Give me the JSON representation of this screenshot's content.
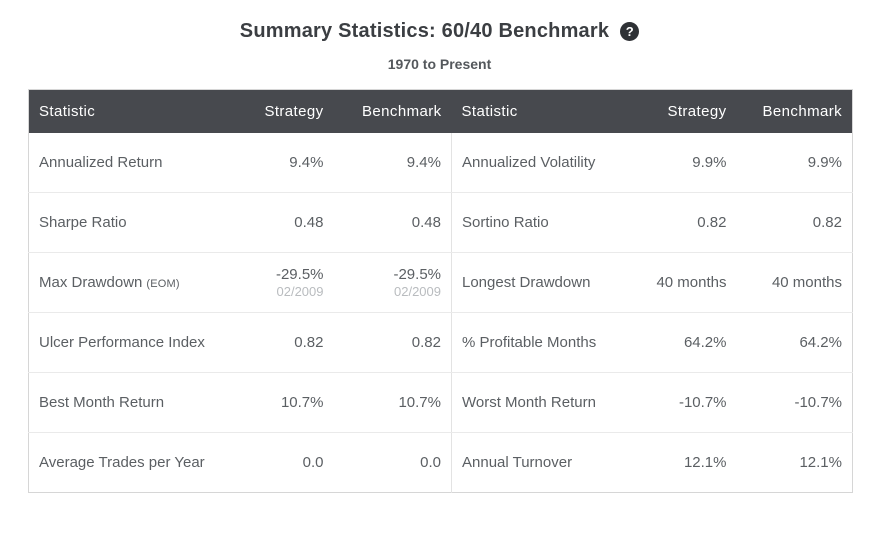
{
  "header": {
    "title": "Summary Statistics: 60/40 Benchmark",
    "help_glyph": "?",
    "help_icon": "question-mark-circle-icon",
    "subtitle": "1970 to Present"
  },
  "colors": {
    "table_header_bg": "#47494E",
    "table_header_text": "#FFFFFF",
    "body_text": "#5B5F63",
    "muted_sub_text": "#B9BCBF",
    "help_icon_bg": "#2E3135",
    "title_text": "#3B3E42"
  },
  "table": {
    "columns": [
      "Statistic",
      "Strategy",
      "Benchmark",
      "Statistic",
      "Strategy",
      "Benchmark"
    ],
    "rows": [
      {
        "left": {
          "label": "Annualized Return",
          "label_suffix": "",
          "strategy": "9.4%",
          "strategy_sub": "",
          "benchmark": "9.4%",
          "benchmark_sub": ""
        },
        "right": {
          "label": "Annualized Volatility",
          "strategy": "9.9%",
          "benchmark": "9.9%"
        }
      },
      {
        "left": {
          "label": "Sharpe Ratio",
          "label_suffix": "",
          "strategy": "0.48",
          "strategy_sub": "",
          "benchmark": "0.48",
          "benchmark_sub": ""
        },
        "right": {
          "label": "Sortino Ratio",
          "strategy": "0.82",
          "benchmark": "0.82"
        }
      },
      {
        "left": {
          "label": "Max Drawdown",
          "label_suffix": "(EOM)",
          "strategy": "-29.5%",
          "strategy_sub": "02/2009",
          "benchmark": "-29.5%",
          "benchmark_sub": "02/2009"
        },
        "right": {
          "label": "Longest Drawdown",
          "strategy": "40 months",
          "benchmark": "40 months"
        }
      },
      {
        "left": {
          "label": "Ulcer Performance Index",
          "label_suffix": "",
          "strategy": "0.82",
          "strategy_sub": "",
          "benchmark": "0.82",
          "benchmark_sub": ""
        },
        "right": {
          "label": "% Profitable Months",
          "strategy": "64.2%",
          "benchmark": "64.2%"
        }
      },
      {
        "left": {
          "label": "Best Month Return",
          "label_suffix": "",
          "strategy": "10.7%",
          "strategy_sub": "",
          "benchmark": "10.7%",
          "benchmark_sub": ""
        },
        "right": {
          "label": "Worst Month Return",
          "strategy": "-10.7%",
          "benchmark": "-10.7%"
        }
      },
      {
        "left": {
          "label": "Average Trades per Year",
          "label_suffix": "",
          "strategy": "0.0",
          "strategy_sub": "",
          "benchmark": "0.0",
          "benchmark_sub": ""
        },
        "right": {
          "label": "Annual Turnover",
          "strategy": "12.1%",
          "benchmark": "12.1%"
        }
      }
    ]
  }
}
